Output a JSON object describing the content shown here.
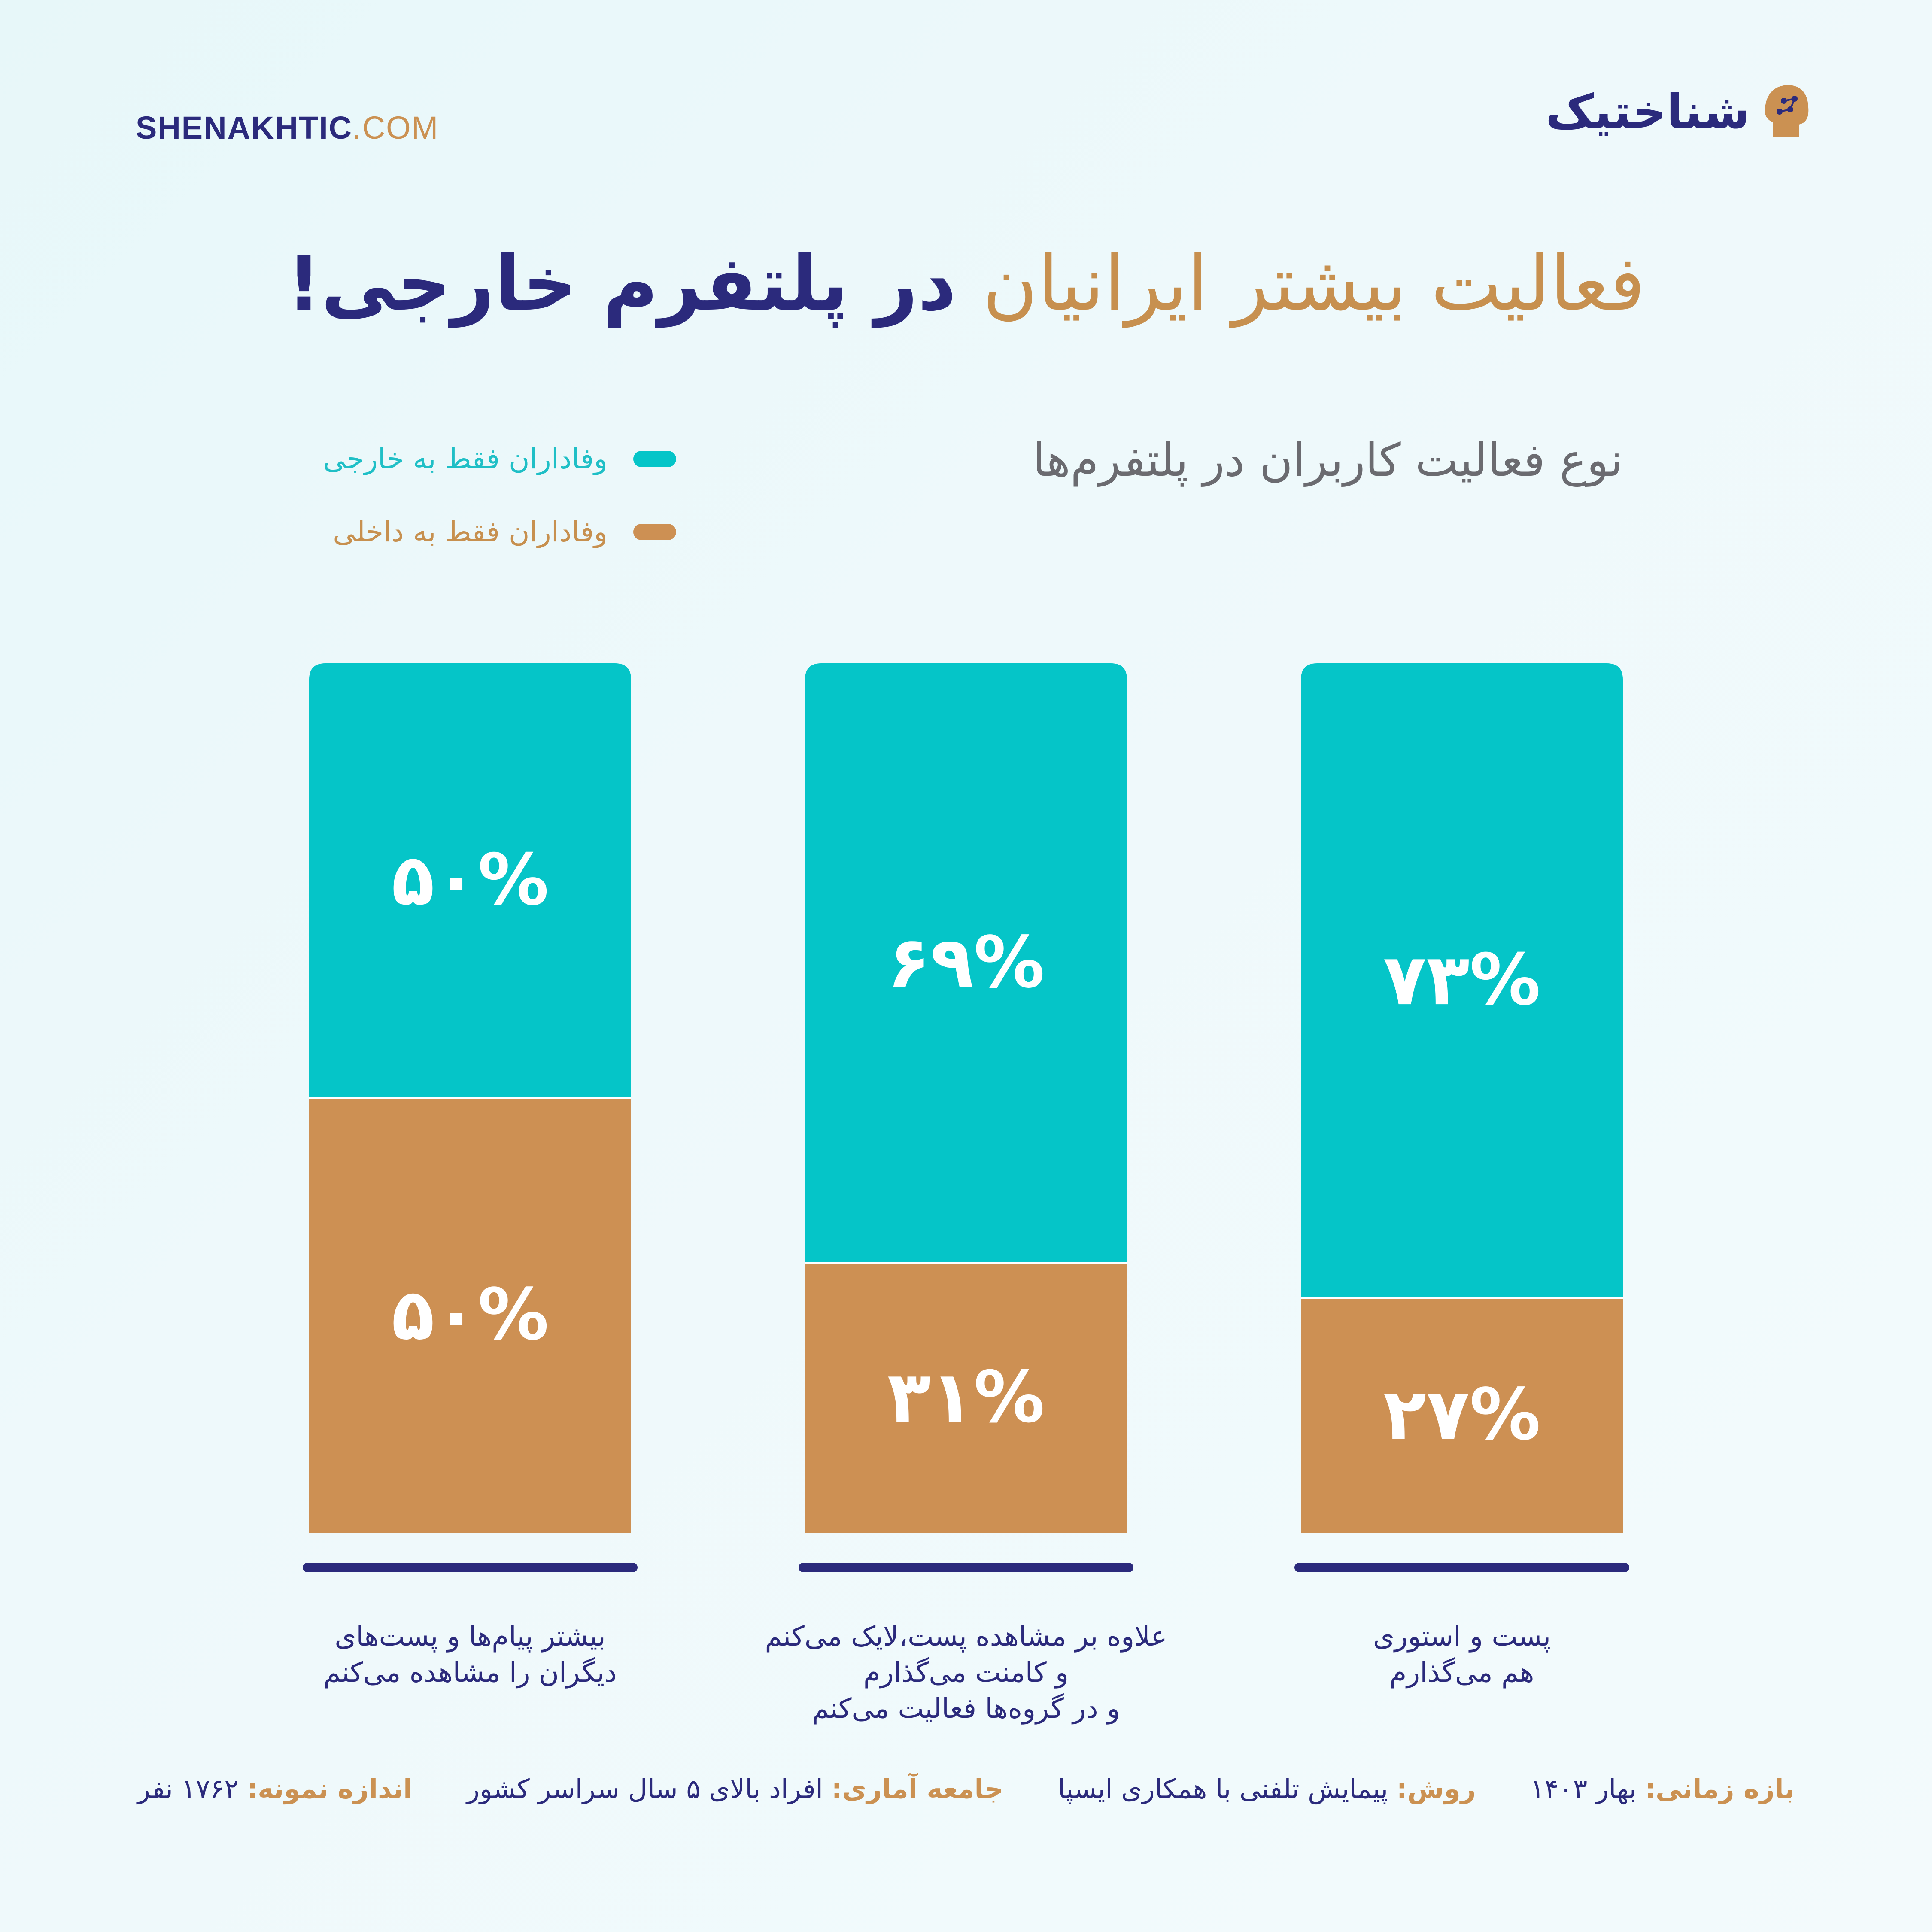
{
  "site": {
    "name": "SHENAKHTIC",
    "domain": ".COM"
  },
  "brand": {
    "name": "شناختیک",
    "logo_icon": "head-circuit-icon"
  },
  "title": {
    "part1": "فعالیت بیشتر ایرانیان",
    "part2": "در پلتفرم خارجی!"
  },
  "colors": {
    "foreign": "#05c5c8",
    "domestic": "#cd9053",
    "navy": "#2b2a7c"
  },
  "chart_data": {
    "type": "bar",
    "stacked": true,
    "title": "نوع فعالیت کاربران در پلتفرم‌ها",
    "categories": [
      [
        "پست و استوری",
        "هم می‌گذارم"
      ],
      [
        "علاوه بر مشاهده پست،لایک می‌کنم",
        "و کامنت می‌گذارم",
        "و در گروه‌ها فعالیت می‌کنم"
      ],
      [
        "بیشتر پیام‌ها و پست‌های",
        "دیگران را مشاهده می‌کنم"
      ]
    ],
    "series": [
      {
        "name": "وفاداران فقط به خارجی",
        "values": [
          73,
          69,
          50
        ],
        "labels": [
          "۷۳%",
          "۶۹%",
          "۵۰%"
        ]
      },
      {
        "name": "وفاداران فقط به داخلی",
        "values": [
          27,
          31,
          50
        ],
        "labels": [
          "۲۷%",
          "۳۱%",
          "۵۰%"
        ]
      }
    ],
    "ylim": [
      0,
      100
    ],
    "legend": "top-left"
  },
  "footer": {
    "period_label": "بازه زمانی:",
    "period_value": "بهار ۱۴۰۳",
    "method_label": "روش:",
    "method_value": "پیمایش تلفنی با همکاری ایسپا",
    "population_label": "جامعه آماری:",
    "population_value": "افراد بالای ۵ سال سراسر کشور",
    "sample_label": "اندازه نمونه:",
    "sample_value": "۱۷۶۲ نفر"
  }
}
